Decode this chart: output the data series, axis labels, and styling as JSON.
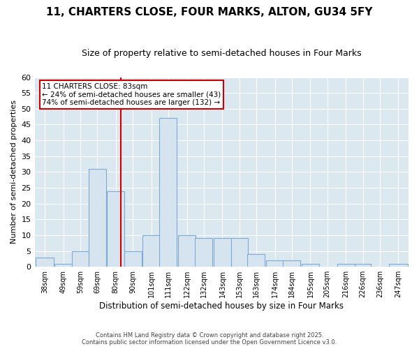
{
  "title": "11, CHARTERS CLOSE, FOUR MARKS, ALTON, GU34 5FY",
  "subtitle": "Size of property relative to semi-detached houses in Four Marks",
  "xlabel": "Distribution of semi-detached houses by size in Four Marks",
  "ylabel": "Number of semi-detached properties",
  "bin_edges": [
    38,
    49,
    59,
    69,
    80,
    90,
    101,
    111,
    122,
    132,
    143,
    153,
    163,
    174,
    184,
    195,
    205,
    216,
    226,
    236,
    247
  ],
  "counts": [
    3,
    1,
    5,
    31,
    24,
    5,
    10,
    47,
    10,
    9,
    9,
    9,
    4,
    2,
    2,
    1,
    0,
    1,
    1,
    0,
    1
  ],
  "bar_color": "#d6e4f0",
  "bar_edgecolor": "#7baad4",
  "property_size": 83,
  "vline_color": "#cc0000",
  "annotation_line1": "11 CHARTERS CLOSE: 83sqm",
  "annotation_line2": "← 24% of semi-detached houses are smaller (43)",
  "annotation_line3": "74% of semi-detached houses are larger (132) →",
  "annotation_box_color": "#cc0000",
  "ylim": [
    0,
    60
  ],
  "yticks": [
    0,
    5,
    10,
    15,
    20,
    25,
    30,
    35,
    40,
    45,
    50,
    55,
    60
  ],
  "footer_line1": "Contains HM Land Registry data © Crown copyright and database right 2025.",
  "footer_line2": "Contains public sector information licensed under the Open Government Licence v3.0.",
  "bg_color": "#ffffff",
  "plot_bg_color": "#dce8f0",
  "grid_color": "#ffffff",
  "title_fontsize": 11,
  "subtitle_fontsize": 9
}
